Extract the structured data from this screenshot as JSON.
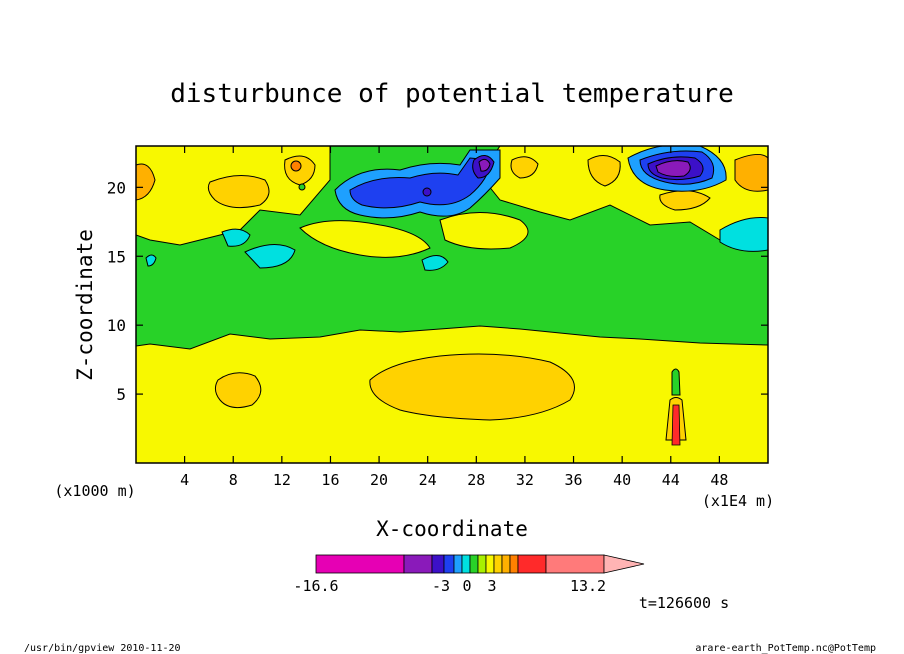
{
  "chart_data": {
    "type": "heatmap",
    "title": "disturbunce of potential temperature",
    "xlabel": "X-coordinate",
    "ylabel": "Z-coordinate",
    "x_unit_left": "(x1000 m)",
    "x_unit_right": "(x1E4 m)",
    "xlim": [
      0,
      52
    ],
    "ylim": [
      0,
      23
    ],
    "x_ticks": [
      4,
      8,
      12,
      16,
      20,
      24,
      28,
      32,
      36,
      40,
      44,
      48
    ],
    "y_ticks": [
      5,
      10,
      15,
      20
    ],
    "time_label": "t=126600 s",
    "colorbar": {
      "min_label": "-16.6",
      "max_label": "13.2",
      "tick_labels": [
        "-3",
        "0",
        "3"
      ],
      "colors": [
        "#e600b4",
        "#8a1aba",
        "#3c10c8",
        "#1e40f0",
        "#1ea0ff",
        "#00e0e0",
        "#28d228",
        "#a8f000",
        "#f8f800",
        "#ffd200",
        "#ffb000",
        "#ff8000",
        "#ff2a2a",
        "#ff7a7a",
        "#ffb4b4"
      ]
    },
    "regions": [
      {
        "name": "background-lower",
        "value": 0.5
      },
      {
        "name": "green-middle",
        "value": -0.5
      },
      {
        "name": "orange-blob-x8",
        "value": 1.5,
        "x": 8,
        "z": 5.4
      },
      {
        "name": "orange-blob-x28",
        "value": 1.5,
        "x": 28.5,
        "z": 5.4
      },
      {
        "name": "purple-core-x28",
        "value": -9,
        "x": 28,
        "z": 21.5
      },
      {
        "name": "purple-core-x44",
        "value": -9,
        "x": 44,
        "z": 21.5
      },
      {
        "name": "blue-band-x24",
        "value": -4,
        "x": 24,
        "z": 19.5
      }
    ]
  },
  "footer": {
    "left": "/usr/bin/gpview  2010-11-20",
    "right": "arare-earth_PotTemp.nc@PotTemp"
  }
}
